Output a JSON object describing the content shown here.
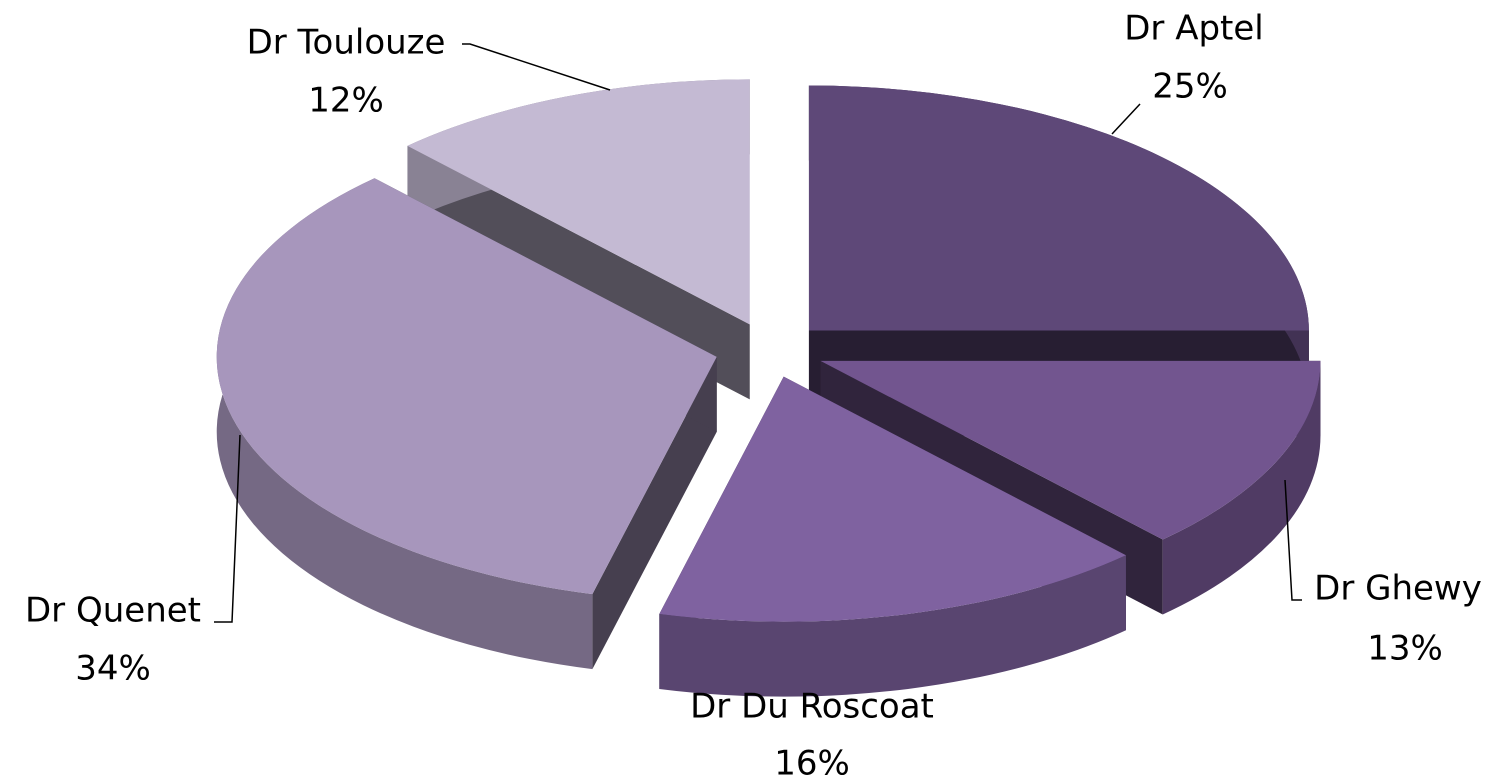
{
  "chart_data": {
    "type": "pie3d",
    "categories": [
      "Dr Aptel",
      "Dr Ghewy",
      "Dr Du Roscoat",
      "Dr Quenet",
      "Dr Toulouze"
    ],
    "values": [
      25,
      13,
      16,
      34,
      12
    ],
    "value_labels": [
      "25%",
      "13%",
      "16%",
      "34%",
      "12%"
    ],
    "colors": [
      "#5e4878",
      "#72558f",
      "#7f62a0",
      "#a796bc",
      "#c4bad3"
    ]
  }
}
